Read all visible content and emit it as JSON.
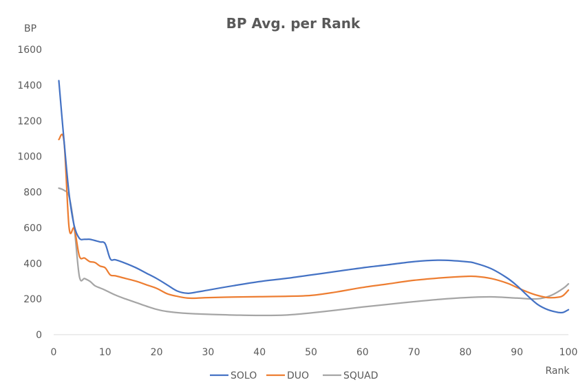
{
  "chart_data": {
    "type": "line",
    "title": "BP Avg. per Rank",
    "xlabel": "Rank",
    "ylabel": "BP",
    "xlim": [
      0,
      100
    ],
    "ylim": [
      0,
      1600
    ],
    "x_ticks": [
      0,
      10,
      20,
      30,
      40,
      50,
      60,
      70,
      80,
      90,
      100
    ],
    "y_ticks": [
      0,
      200,
      400,
      600,
      800,
      1000,
      1200,
      1400,
      1600
    ],
    "grid": false,
    "legend_position": "bottom",
    "series": [
      {
        "name": "SOLO",
        "color": "#4472c4",
        "points": [
          [
            1,
            1425
          ],
          [
            2,
            1090
          ],
          [
            3,
            790
          ],
          [
            4,
            610
          ],
          [
            5,
            540
          ],
          [
            6,
            535
          ],
          [
            7,
            535
          ],
          [
            8,
            528
          ],
          [
            9,
            520
          ],
          [
            10,
            510
          ],
          [
            11,
            425
          ],
          [
            12,
            420
          ],
          [
            14,
            400
          ],
          [
            16,
            375
          ],
          [
            18,
            345
          ],
          [
            20,
            315
          ],
          [
            22,
            280
          ],
          [
            24,
            245
          ],
          [
            26,
            232
          ],
          [
            28,
            240
          ],
          [
            30,
            250
          ],
          [
            35,
            275
          ],
          [
            40,
            298
          ],
          [
            45,
            315
          ],
          [
            50,
            335
          ],
          [
            55,
            355
          ],
          [
            60,
            375
          ],
          [
            65,
            392
          ],
          [
            70,
            410
          ],
          [
            75,
            418
          ],
          [
            80,
            410
          ],
          [
            82,
            400
          ],
          [
            85,
            370
          ],
          [
            88,
            320
          ],
          [
            90,
            275
          ],
          [
            92,
            220
          ],
          [
            94,
            170
          ],
          [
            96,
            140
          ],
          [
            98,
            125
          ],
          [
            99,
            125
          ],
          [
            100,
            140
          ]
        ]
      },
      {
        "name": "DUO",
        "color": "#ed7d31",
        "points": [
          [
            1,
            1095
          ],
          [
            2,
            1085
          ],
          [
            3,
            600
          ],
          [
            4,
            595
          ],
          [
            5,
            440
          ],
          [
            6,
            430
          ],
          [
            7,
            410
          ],
          [
            8,
            405
          ],
          [
            9,
            385
          ],
          [
            10,
            375
          ],
          [
            11,
            335
          ],
          [
            12,
            330
          ],
          [
            14,
            315
          ],
          [
            16,
            300
          ],
          [
            18,
            280
          ],
          [
            20,
            260
          ],
          [
            22,
            230
          ],
          [
            24,
            215
          ],
          [
            26,
            205
          ],
          [
            28,
            205
          ],
          [
            30,
            208
          ],
          [
            35,
            211
          ],
          [
            40,
            213
          ],
          [
            45,
            215
          ],
          [
            50,
            220
          ],
          [
            55,
            240
          ],
          [
            60,
            265
          ],
          [
            65,
            285
          ],
          [
            70,
            305
          ],
          [
            75,
            318
          ],
          [
            80,
            327
          ],
          [
            82,
            327
          ],
          [
            85,
            315
          ],
          [
            88,
            290
          ],
          [
            90,
            265
          ],
          [
            92,
            240
          ],
          [
            94,
            220
          ],
          [
            96,
            208
          ],
          [
            98,
            210
          ],
          [
            99,
            220
          ],
          [
            100,
            250
          ]
        ]
      },
      {
        "name": "SQUAD",
        "color": "#a5a5a5",
        "points": [
          [
            1,
            822
          ],
          [
            2,
            810
          ],
          [
            3,
            775
          ],
          [
            4,
            600
          ],
          [
            5,
            325
          ],
          [
            6,
            315
          ],
          [
            7,
            300
          ],
          [
            8,
            275
          ],
          [
            9,
            262
          ],
          [
            10,
            250
          ],
          [
            12,
            222
          ],
          [
            14,
            200
          ],
          [
            16,
            180
          ],
          [
            18,
            160
          ],
          [
            20,
            142
          ],
          [
            22,
            130
          ],
          [
            25,
            121
          ],
          [
            30,
            114
          ],
          [
            35,
            110
          ],
          [
            40,
            108
          ],
          [
            45,
            110
          ],
          [
            50,
            122
          ],
          [
            55,
            138
          ],
          [
            60,
            155
          ],
          [
            65,
            170
          ],
          [
            70,
            185
          ],
          [
            75,
            198
          ],
          [
            80,
            208
          ],
          [
            85,
            212
          ],
          [
            90,
            205
          ],
          [
            93,
            200
          ],
          [
            95,
            205
          ],
          [
            97,
            225
          ],
          [
            99,
            260
          ],
          [
            100,
            285
          ]
        ]
      }
    ]
  }
}
